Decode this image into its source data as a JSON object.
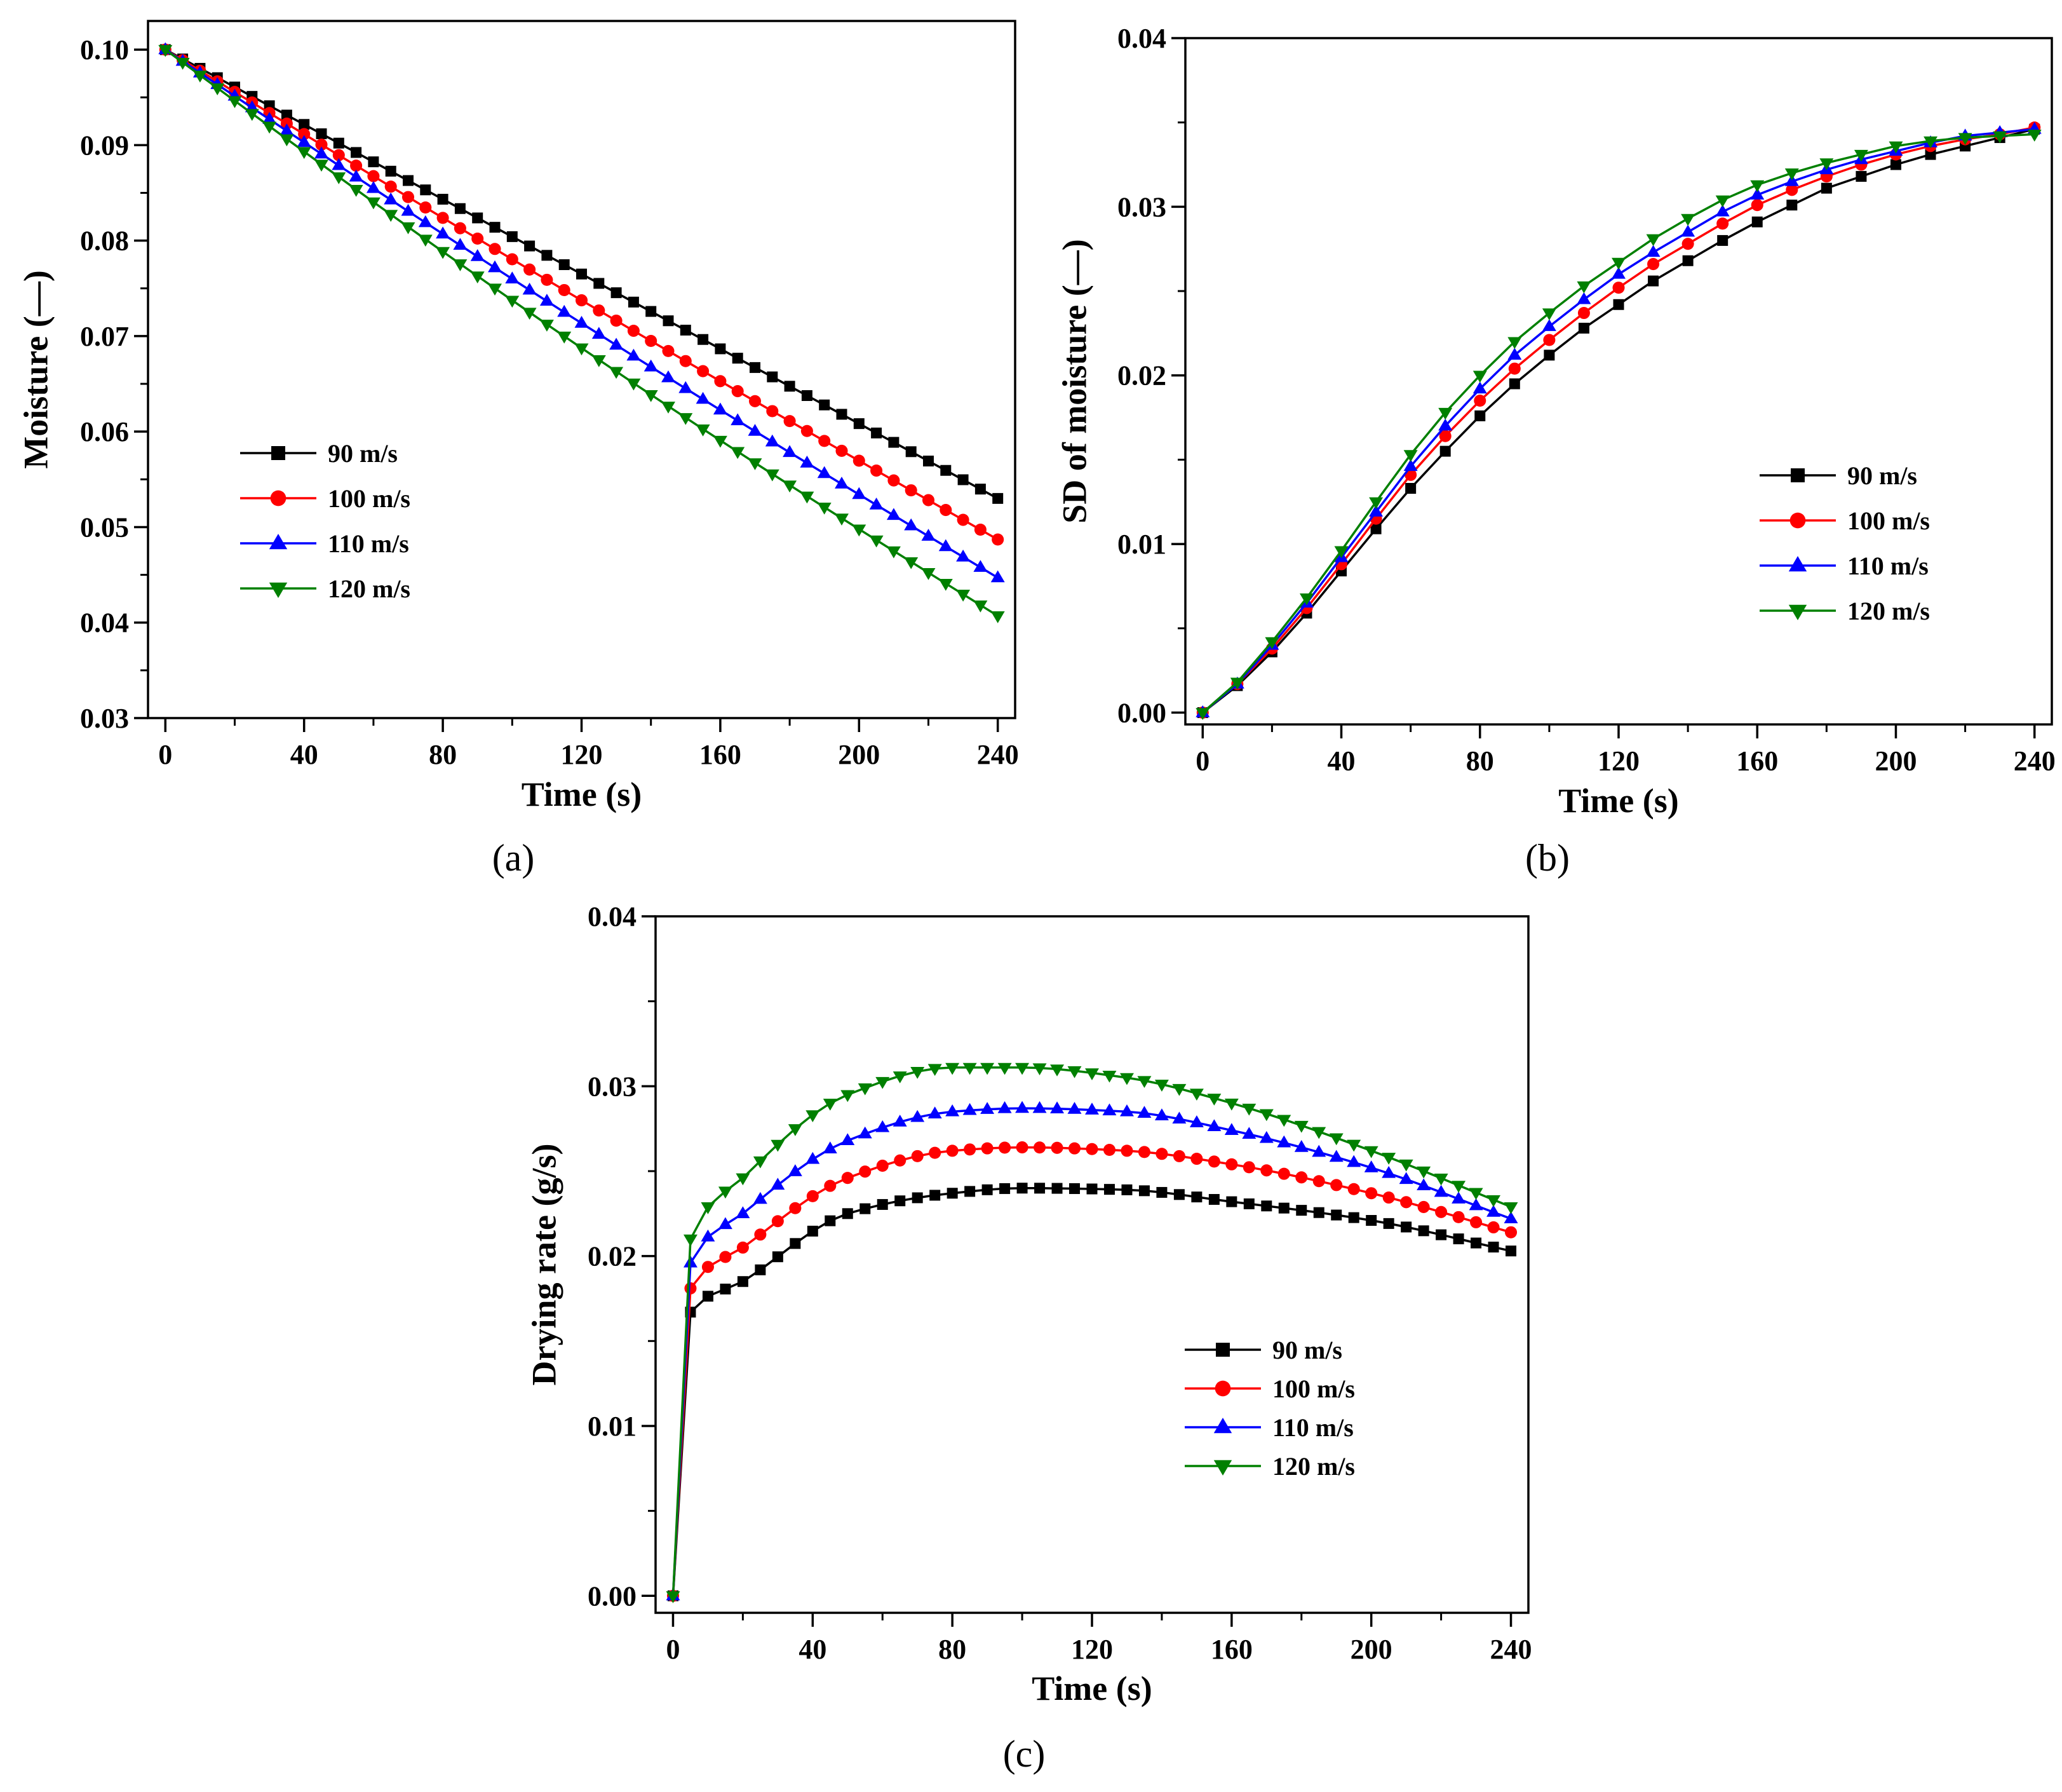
{
  "figure": {
    "panel_labels": [
      "(a)",
      "(b)",
      "(c)"
    ]
  },
  "chart_data": [
    {
      "type": "line",
      "panel": "(a)",
      "title": "",
      "xlabel": "Time (s)",
      "ylabel": "Moisture (—)",
      "xlim": [
        -5,
        245
      ],
      "ylim": [
        0.03,
        0.103
      ],
      "xticks": [
        0,
        40,
        80,
        120,
        160,
        200,
        240
      ],
      "xtick_labels": [
        "0",
        "40",
        "80",
        "120",
        "160",
        "200",
        "240"
      ],
      "yticks": [
        0.03,
        0.04,
        0.05,
        0.06,
        0.07,
        0.08,
        0.09,
        0.1
      ],
      "ytick_labels": [
        "0.03",
        "0.04",
        "0.05",
        "0.06",
        "0.07",
        "0.08",
        "0.09",
        "0.10"
      ],
      "legend_position": "middle-left",
      "x_step": 5,
      "x_max": 240,
      "curve": "moisture",
      "series": [
        {
          "name": "90 m/s",
          "color": "#000000",
          "marker": "square",
          "endpoint": 0.053,
          "sag": 0.0
        },
        {
          "name": "100 m/s",
          "color": "#ff0000",
          "marker": "circle",
          "endpoint": 0.0487,
          "sag": 0.0006
        },
        {
          "name": "110 m/s",
          "color": "#0000ff",
          "marker": "triangle-up",
          "endpoint": 0.0447,
          "sag": 0.001
        },
        {
          "name": "120 m/s",
          "color": "#008000",
          "marker": "triangle-down",
          "endpoint": 0.0407,
          "sag": 0.0016
        }
      ]
    },
    {
      "type": "line",
      "panel": "(b)",
      "title": "",
      "xlabel": "Time (s)",
      "ylabel": "SD of moisture (—)",
      "xlim": [
        -5,
        245
      ],
      "ylim": [
        -0.0007,
        0.04
      ],
      "xticks": [
        0,
        40,
        80,
        120,
        160,
        200,
        240
      ],
      "xtick_labels": [
        "0",
        "40",
        "80",
        "120",
        "160",
        "200",
        "240"
      ],
      "yticks": [
        0.0,
        0.01,
        0.02,
        0.03,
        0.04
      ],
      "ytick_labels": [
        "0.00",
        "0.01",
        "0.02",
        "0.03",
        "0.04"
      ],
      "legend_position": "middle-right",
      "x": [
        0,
        10,
        20,
        30,
        40,
        50,
        60,
        70,
        80,
        90,
        100,
        110,
        120,
        130,
        140,
        150,
        160,
        170,
        180,
        190,
        200,
        210,
        220,
        230,
        240
      ],
      "series": [
        {
          "name": "90 m/s",
          "color": "#000000",
          "marker": "square",
          "values": [
            0.0,
            0.0016,
            0.0036,
            0.0059,
            0.0084,
            0.0109,
            0.0133,
            0.0155,
            0.0176,
            0.0195,
            0.0212,
            0.0228,
            0.0242,
            0.0256,
            0.0268,
            0.028,
            0.0291,
            0.0301,
            0.0311,
            0.0318,
            0.0325,
            0.0331,
            0.0336,
            0.0341,
            0.0346
          ]
        },
        {
          "name": "100 m/s",
          "color": "#ff0000",
          "marker": "circle",
          "values": [
            0.0,
            0.0017,
            0.0038,
            0.0062,
            0.0088,
            0.0115,
            0.0141,
            0.0164,
            0.0185,
            0.0204,
            0.0221,
            0.0237,
            0.0252,
            0.0266,
            0.0278,
            0.029,
            0.0301,
            0.031,
            0.0318,
            0.0325,
            0.0331,
            0.0336,
            0.034,
            0.0343,
            0.0347
          ]
        },
        {
          "name": "110 m/s",
          "color": "#0000ff",
          "marker": "triangle-up",
          "values": [
            0.0,
            0.0017,
            0.004,
            0.0065,
            0.0092,
            0.0119,
            0.0146,
            0.017,
            0.0192,
            0.0212,
            0.0229,
            0.0245,
            0.026,
            0.0273,
            0.0285,
            0.0297,
            0.0307,
            0.0315,
            0.0322,
            0.0328,
            0.0333,
            0.0338,
            0.0342,
            0.0344,
            0.0346
          ]
        },
        {
          "name": "120 m/s",
          "color": "#008000",
          "marker": "triangle-down",
          "values": [
            0.0,
            0.0018,
            0.0042,
            0.0068,
            0.0096,
            0.0125,
            0.0153,
            0.0178,
            0.02,
            0.022,
            0.0237,
            0.0253,
            0.0267,
            0.0281,
            0.0293,
            0.0304,
            0.0313,
            0.032,
            0.0326,
            0.0331,
            0.0336,
            0.0339,
            0.0341,
            0.0342,
            0.0343
          ]
        }
      ]
    },
    {
      "type": "line",
      "panel": "(c)",
      "title": "",
      "xlabel": "Time (s)",
      "ylabel": "Drying rate (g/s)",
      "xlim": [
        -5,
        245
      ],
      "ylim": [
        -0.001,
        0.04
      ],
      "xticks": [
        0,
        40,
        80,
        120,
        160,
        200,
        240
      ],
      "xtick_labels": [
        "0",
        "40",
        "80",
        "120",
        "160",
        "200",
        "240"
      ],
      "yticks": [
        0.0,
        0.01,
        0.02,
        0.03,
        0.04
      ],
      "ytick_labels": [
        "0.00",
        "0.01",
        "0.02",
        "0.03",
        "0.04"
      ],
      "legend_position": "lower-right",
      "x_step": 5,
      "x_max": 240,
      "curve": "drying",
      "series": [
        {
          "name": "90 m/s",
          "color": "#000000",
          "marker": "square",
          "knots": [
            [
              0,
              0.0
            ],
            [
              5,
              0.0167
            ],
            [
              20,
              0.0185
            ],
            [
              50,
              0.0225
            ],
            [
              80,
              0.0237
            ],
            [
              100,
              0.024
            ],
            [
              130,
              0.0239
            ],
            [
              160,
              0.0232
            ],
            [
              200,
              0.0221
            ],
            [
              240,
              0.0203
            ]
          ]
        },
        {
          "name": "100 m/s",
          "color": "#ff0000",
          "marker": "circle",
          "knots": [
            [
              0,
              0.0
            ],
            [
              5,
              0.0181
            ],
            [
              20,
              0.0205
            ],
            [
              50,
              0.0246
            ],
            [
              80,
              0.0262
            ],
            [
              100,
              0.0264
            ],
            [
              130,
              0.0262
            ],
            [
              160,
              0.0254
            ],
            [
              200,
              0.0237
            ],
            [
              240,
              0.0214
            ]
          ]
        },
        {
          "name": "110 m/s",
          "color": "#0000ff",
          "marker": "triangle-up",
          "knots": [
            [
              0,
              0.0
            ],
            [
              5,
              0.0196
            ],
            [
              20,
              0.0225
            ],
            [
              50,
              0.0268
            ],
            [
              80,
              0.0285
            ],
            [
              100,
              0.0287
            ],
            [
              130,
              0.0285
            ],
            [
              160,
              0.0274
            ],
            [
              200,
              0.0252
            ],
            [
              240,
              0.0222
            ]
          ]
        },
        {
          "name": "120 m/s",
          "color": "#008000",
          "marker": "triangle-down",
          "knots": [
            [
              0,
              0.0
            ],
            [
              5,
              0.021
            ],
            [
              20,
              0.0246
            ],
            [
              50,
              0.0295
            ],
            [
              80,
              0.0311
            ],
            [
              100,
              0.0311
            ],
            [
              130,
              0.0305
            ],
            [
              160,
              0.029
            ],
            [
              200,
              0.0262
            ],
            [
              240,
              0.0229
            ]
          ]
        }
      ]
    }
  ]
}
